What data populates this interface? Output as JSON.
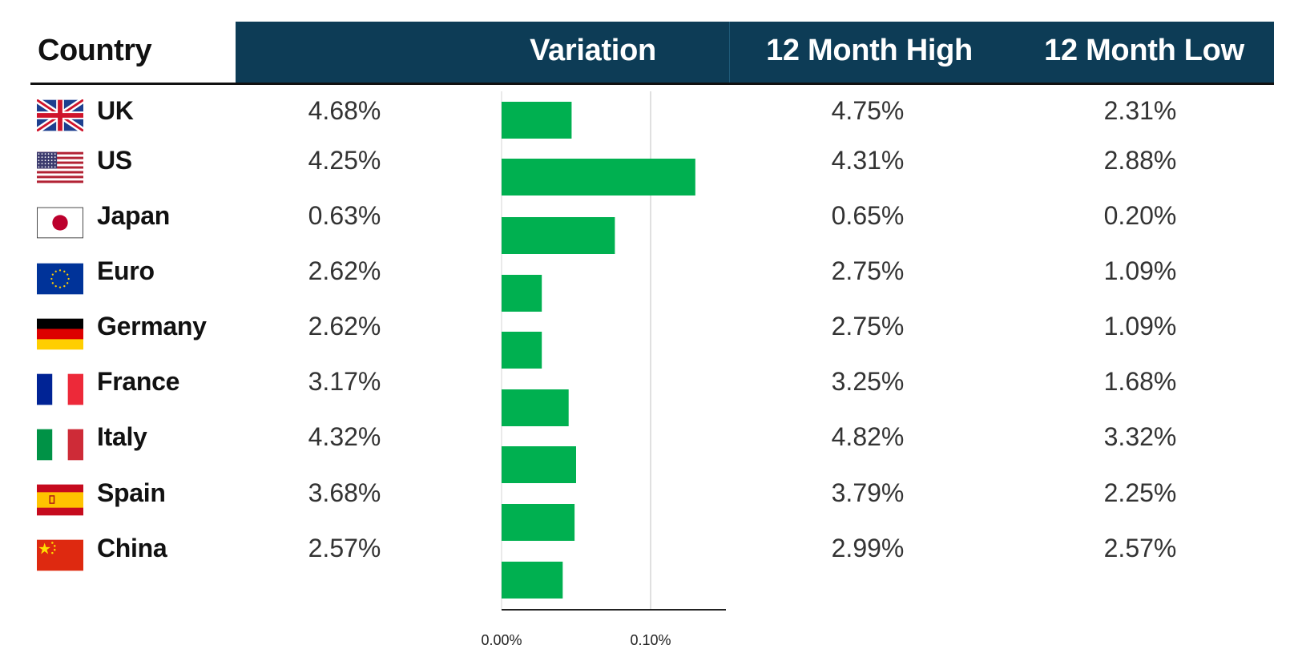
{
  "header": {
    "country": "Country",
    "variation": "Variation",
    "high": "12 Month High",
    "low": "12 Month Low"
  },
  "rows": [
    {
      "country": "UK",
      "flag": "uk-flag-icon",
      "current": "4.68%",
      "high": "4.75%",
      "low": "2.31%"
    },
    {
      "country": "US",
      "flag": "us-flag-icon",
      "current": "4.25%",
      "high": "4.31%",
      "low": "2.88%"
    },
    {
      "country": "Japan",
      "flag": "japan-flag-icon",
      "current": "0.63%",
      "high": "0.65%",
      "low": "0.20%"
    },
    {
      "country": "Euro",
      "flag": "eu-flag-icon",
      "current": "2.62%",
      "high": "2.75%",
      "low": "1.09%"
    },
    {
      "country": "Germany",
      "flag": "germany-flag-icon",
      "current": "2.62%",
      "high": "2.75%",
      "low": "1.09%"
    },
    {
      "country": "France",
      "flag": "france-flag-icon",
      "current": "3.17%",
      "high": "3.25%",
      "low": "1.68%"
    },
    {
      "country": "Italy",
      "flag": "italy-flag-icon",
      "current": "4.32%",
      "high": "4.82%",
      "low": "3.32%"
    },
    {
      "country": "Spain",
      "flag": "spain-flag-icon",
      "current": "3.68%",
      "high": "3.79%",
      "low": "2.25%"
    },
    {
      "country": "China",
      "flag": "china-flag-icon",
      "current": "2.57%",
      "high": "2.99%",
      "low": "2.57%"
    }
  ],
  "colors": {
    "header_band": "#0d3c56",
    "bar": "#00b050"
  },
  "chart_data": {
    "type": "bar",
    "orientation": "horizontal",
    "categories": [
      "UK",
      "US",
      "Japan",
      "Euro",
      "Germany",
      "France",
      "Italy",
      "Spain",
      "China"
    ],
    "values": [
      0.047,
      0.13,
      0.076,
      0.027,
      0.027,
      0.045,
      0.05,
      0.049,
      0.041
    ],
    "unit": "%",
    "xlim": [
      0,
      0.15
    ],
    "x_ticks": [
      0,
      0.1
    ],
    "x_tick_labels": [
      "0.00%",
      "0.10%"
    ],
    "grid": "vertical line at 0.10%"
  }
}
